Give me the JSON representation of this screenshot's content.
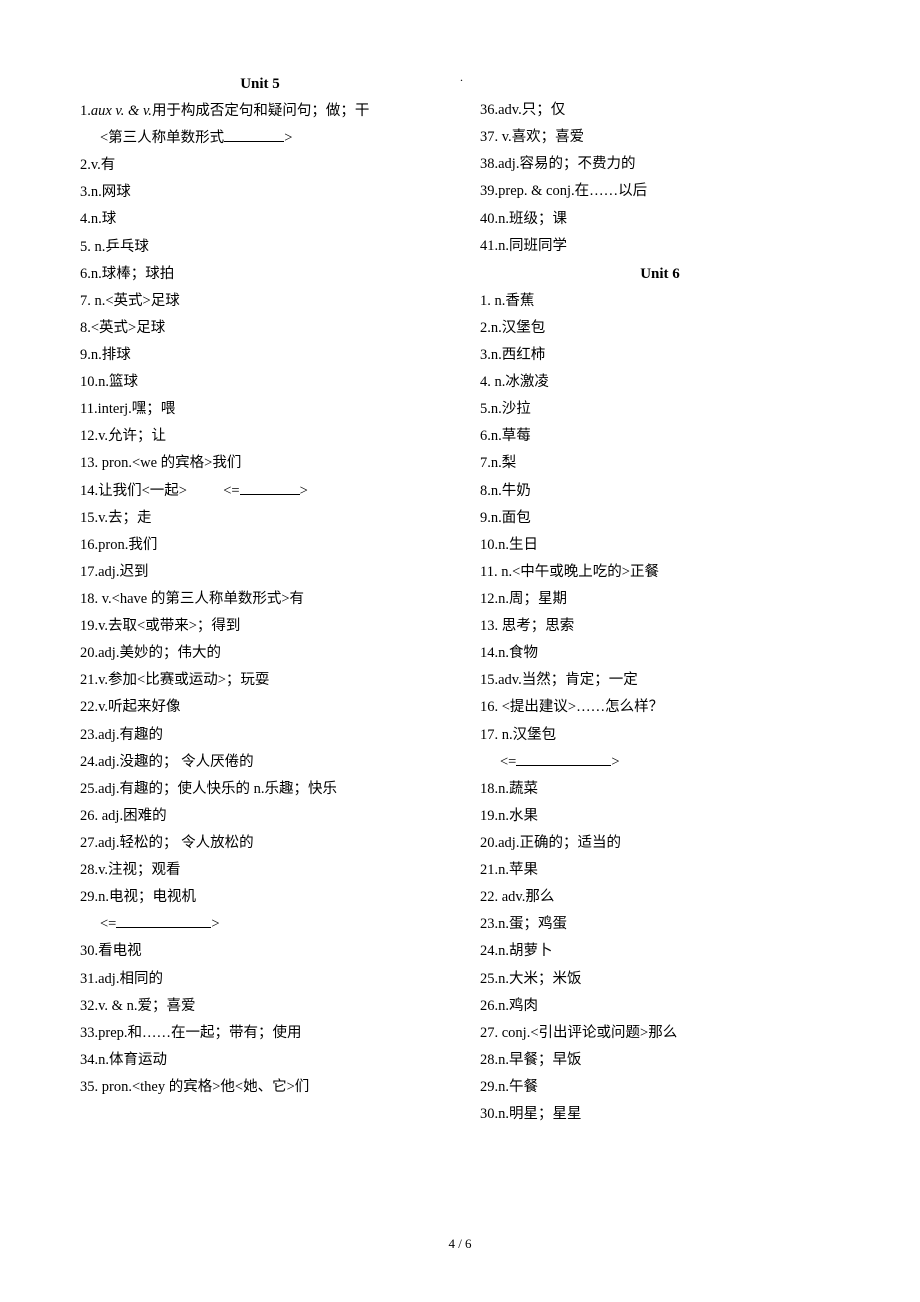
{
  "unit5_title": "Unit 5",
  "unit6_title": "Unit 6",
  "left": {
    "i1_pre": "1.",
    "i1_italic": "aux v. & v.",
    "i1_post": "用于构成否定句和疑问句；做；干",
    "i1b": "<第三人称单数形式",
    "i1b_end": ">",
    "i2": "2.v.有",
    "i3": "3.n.网球",
    "i4": "4.n.球",
    "i5": "5.  n.乒乓球",
    "i6": "6.n.球棒；球拍",
    "i7": "7.  n.<英式>足球",
    "i8": "8.<英式>足球",
    "i9": "9.n.排球",
    "i10": "10.n.篮球",
    "i11": "11.interj.嘿；喂",
    "i12": "12.v.允许；让",
    "i13": "13.  pron.<we 的宾格>我们",
    "i14a": "14.让我们<一起>",
    "i14b": "<=",
    "i14c": ">",
    "i15": "15.v.去；走",
    "i16": "16.pron.我们",
    "i17": "17.adj.迟到",
    "i18": "18.  v.<have 的第三人称单数形式>有",
    "i19": "19.v.去取<或带来>；得到",
    "i20": "20.adj.美妙的；伟大的",
    "i21": "21.v.参加<比赛或运动>；玩耍",
    "i22": "22.v.听起来好像",
    "i23": "23.adj.有趣的",
    "i24": "24.adj.没趣的； 令人厌倦的",
    "i25": "25.adj.有趣的；使人快乐的    n.乐趣；快乐",
    "i26": "26.  adj.困难的",
    "i27": "27.adj.轻松的； 令人放松的",
    "i28": "28.v.注视；观看",
    "i29": "29.n.电视；电视机",
    "i29b": "<=",
    "i29c": ">",
    "i30": "30.看电视",
    "i31": "31.adj.相同的",
    "i32": "32.v. & n.爱；喜爱",
    "i33": "33.prep.和……在一起；带有；使用",
    "i34": "34.n.体育运动",
    "i35": "35.  pron.<they 的宾格>他<她、它>们"
  },
  "right": {
    "r36": "36.adv.只；仅",
    "r37": "37.  v.喜欢；喜爱",
    "r38": "38.adj.容易的；不费力的",
    "r39": "39.prep. & conj.在……以后",
    "r40": "40.n.班级；课",
    "r41": "41.n.同班同学",
    "u1": "1.  n.香蕉",
    "u2": "2.n.汉堡包",
    "u3": "3.n.西红柿",
    "u4": "4.  n.冰激凌",
    "u5": "5.n.沙拉",
    "u6": "6.n.草莓",
    "u7": "7.n.梨",
    "u8": "8.n.牛奶",
    "u9": "9.n.面包",
    "u10": "10.n.生日",
    "u11": "11.  n.<中午或晚上吃的>正餐",
    "u12": "12.n.周；星期",
    "u13": "13.  思考；思索",
    "u14": "14.n.食物",
    "u15": "15.adv.当然；肯定；一定",
    "u16": "16.  <提出建议>……怎么样？",
    "u17": "17.  n.汉堡包",
    "u17b": "<=",
    "u17c": ">",
    "u18": "18.n.蔬菜",
    "u19": "19.n.水果",
    "u20": "20.adj.正确的；适当的",
    "u21": "21.n.苹果",
    "u22": "22.  adv.那么",
    "u23": "23.n.蛋；鸡蛋",
    "u24": "24.n.胡萝卜",
    "u25": "25.n.大米；米饭",
    "u26": "26.n.鸡肉",
    "u27": "27.  conj.<引出评论或问题>那么",
    "u28": "28.n.早餐；早饭",
    "u29": "29.n.午餐",
    "u30": "30.n.明星；星星"
  },
  "footer": "4  /  6"
}
